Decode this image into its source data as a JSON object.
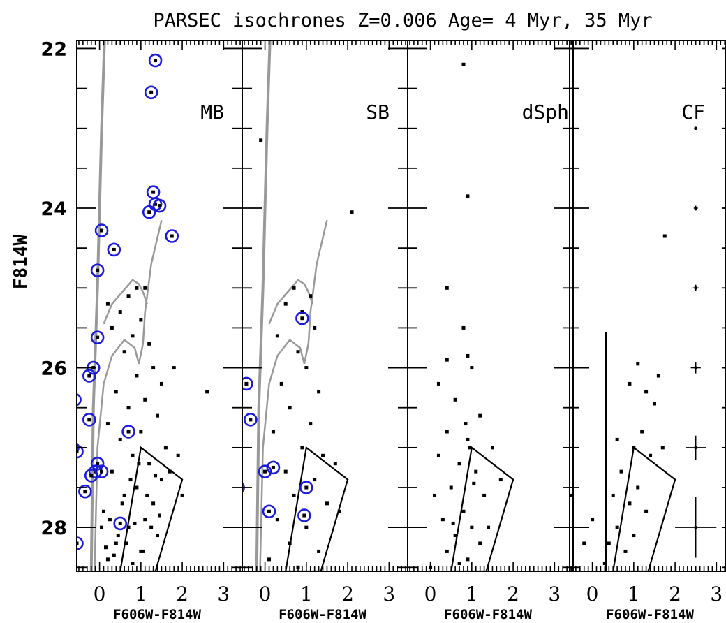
{
  "chart_data": {
    "type": "scatter",
    "title": "PARSEC isochrones Z=0.006   Age= 4 Myr, 35 Myr",
    "ylabel": "F814W",
    "xlabel": "F606W-F814W",
    "xlim": [
      -0.55,
      3.45
    ],
    "ylim": [
      28.55,
      21.9
    ],
    "y_inverted": true,
    "yticks": [
      22,
      24,
      26,
      28
    ],
    "xticks": [
      0,
      1,
      2,
      3
    ],
    "isochrones": [
      {
        "age": "4 Myr",
        "x": [
          -0.2,
          -0.15,
          -0.05,
          0.05,
          0.12
        ],
        "y": [
          28.55,
          26.5,
          25.0,
          23.0,
          21.9
        ]
      },
      {
        "age": "35 Myr",
        "x": [
          -0.12,
          -0.05,
          0.1,
          0.3,
          0.6,
          0.85,
          0.95,
          1.05,
          1.1,
          1.25,
          1.5
        ],
        "y": [
          28.55,
          27.0,
          26.2,
          25.85,
          25.65,
          25.75,
          25.95,
          25.7,
          25.3,
          24.7,
          24.15
        ]
      },
      {
        "age": "35 Myr",
        "x": [
          0.1,
          0.3,
          0.55,
          0.8,
          0.95,
          1.05,
          1.15
        ],
        "y": [
          25.45,
          25.2,
          25.05,
          24.9,
          24.95,
          25.05,
          25.2
        ]
      }
    ],
    "completeness_box": {
      "x": [
        0.5,
        1.0,
        2.0,
        1.35,
        0.5
      ],
      "y": [
        28.55,
        27.0,
        27.4,
        28.55,
        28.55
      ]
    },
    "panels": [
      {
        "label": "MB",
        "show_isochrones": true,
        "stars": [
          [
            0.9,
            25.0
          ],
          [
            1.1,
            25.0
          ],
          [
            0.7,
            25.1
          ],
          [
            0.2,
            25.2
          ],
          [
            0.5,
            25.3
          ],
          [
            1.0,
            25.4
          ],
          [
            0.3,
            25.5
          ],
          [
            0.8,
            25.6
          ],
          [
            1.2,
            25.7
          ],
          [
            0.6,
            25.8
          ],
          [
            1.3,
            26.0
          ],
          [
            0.9,
            26.1
          ],
          [
            1.5,
            26.2
          ],
          [
            0.4,
            26.3
          ],
          [
            1.1,
            26.4
          ],
          [
            0.7,
            26.5
          ],
          [
            1.4,
            26.6
          ],
          [
            0.2,
            26.7
          ],
          [
            1.0,
            26.8
          ],
          [
            0.5,
            26.9
          ],
          [
            1.6,
            27.0
          ],
          [
            0.8,
            27.1
          ],
          [
            1.2,
            27.2
          ],
          [
            0.3,
            27.3
          ],
          [
            1.5,
            27.4
          ],
          [
            0.9,
            27.5
          ],
          [
            0.6,
            27.6
          ],
          [
            1.3,
            27.7
          ],
          [
            0.1,
            27.8
          ],
          [
            1.1,
            27.9
          ],
          [
            0.7,
            28.0
          ],
          [
            1.4,
            28.1
          ],
          [
            0.4,
            28.2
          ],
          [
            1.0,
            28.3
          ],
          [
            0.2,
            28.4
          ],
          [
            0.8,
            28.45
          ],
          [
            1.7,
            27.3
          ],
          [
            1.9,
            27.1
          ],
          [
            2.0,
            27.6
          ],
          [
            2.6,
            26.3
          ],
          [
            1.8,
            26.0
          ],
          [
            0.05,
            28.0
          ],
          [
            0.25,
            27.9
          ],
          [
            0.45,
            28.1
          ],
          [
            0.65,
            28.2
          ],
          [
            0.85,
            27.95
          ],
          [
            1.05,
            28.3
          ],
          [
            1.25,
            28.0
          ],
          [
            1.45,
            27.85
          ],
          [
            0.35,
            28.35
          ],
          [
            0.15,
            28.25
          ],
          [
            0.55,
            27.7
          ],
          [
            0.75,
            27.4
          ],
          [
            0.95,
            27.2
          ],
          [
            1.15,
            27.6
          ],
          [
            1.35,
            27.35
          ]
        ],
        "circled": [
          [
            1.35,
            22.15
          ],
          [
            1.25,
            22.55
          ],
          [
            1.3,
            23.8
          ],
          [
            1.35,
            23.95
          ],
          [
            1.45,
            23.97
          ],
          [
            1.2,
            24.05
          ],
          [
            1.75,
            24.35
          ],
          [
            0.05,
            24.28
          ],
          [
            0.35,
            24.52
          ],
          [
            -0.05,
            24.78
          ],
          [
            -0.05,
            25.62
          ],
          [
            -0.15,
            26.0
          ],
          [
            -0.25,
            26.1
          ],
          [
            -0.6,
            26.4
          ],
          [
            -0.25,
            26.65
          ],
          [
            -0.65,
            27.0
          ],
          [
            -0.55,
            27.05
          ],
          [
            0.7,
            26.8
          ],
          [
            -0.05,
            27.2
          ],
          [
            -0.1,
            27.3
          ],
          [
            0.05,
            27.3
          ],
          [
            -0.2,
            27.35
          ],
          [
            -0.35,
            27.55
          ],
          [
            0.5,
            27.95
          ],
          [
            -0.55,
            28.2
          ]
        ]
      },
      {
        "label": "SB",
        "show_isochrones": true,
        "stars": [
          [
            0.7,
            25.0
          ],
          [
            1.1,
            25.1
          ],
          [
            0.5,
            25.2
          ],
          [
            0.9,
            25.3
          ],
          [
            1.2,
            25.5
          ],
          [
            0.3,
            25.6
          ],
          [
            0.8,
            25.8
          ],
          [
            1.0,
            26.0
          ],
          [
            0.4,
            26.2
          ],
          [
            1.3,
            26.3
          ],
          [
            0.6,
            26.5
          ],
          [
            1.1,
            26.7
          ],
          [
            0.2,
            26.8
          ],
          [
            0.9,
            27.0
          ],
          [
            1.4,
            27.1
          ],
          [
            0.5,
            27.3
          ],
          [
            1.2,
            27.4
          ],
          [
            0.7,
            27.6
          ],
          [
            1.5,
            27.7
          ],
          [
            0.3,
            27.9
          ],
          [
            1.0,
            28.0
          ],
          [
            0.6,
            28.2
          ],
          [
            1.3,
            28.3
          ],
          [
            0.1,
            28.4
          ],
          [
            0.8,
            28.5
          ],
          [
            2.1,
            24.05
          ],
          [
            -0.1,
            23.15
          ],
          [
            1.7,
            27.2
          ],
          [
            1.8,
            27.8
          ]
        ],
        "circled": [
          [
            0.9,
            25.38
          ],
          [
            -0.45,
            26.2
          ],
          [
            -0.35,
            26.65
          ],
          [
            0.0,
            27.3
          ],
          [
            0.2,
            27.25
          ],
          [
            -0.65,
            27.5
          ],
          [
            1.0,
            27.5
          ],
          [
            0.1,
            27.8
          ],
          [
            0.95,
            27.85
          ]
        ]
      },
      {
        "label": "dSph",
        "show_isochrones": false,
        "stars": [
          [
            0.8,
            22.2
          ],
          [
            0.9,
            23.85
          ],
          [
            0.4,
            25.0
          ],
          [
            0.8,
            25.5
          ],
          [
            0.4,
            25.9
          ],
          [
            0.9,
            25.85
          ],
          [
            1.0,
            26.0
          ],
          [
            0.2,
            26.2
          ],
          [
            0.6,
            26.4
          ],
          [
            1.2,
            26.6
          ],
          [
            0.4,
            26.8
          ],
          [
            0.9,
            26.9
          ],
          [
            1.5,
            27.0
          ],
          [
            0.2,
            27.1
          ],
          [
            0.7,
            27.2
          ],
          [
            1.1,
            27.3
          ],
          [
            0.5,
            27.5
          ],
          [
            1.3,
            27.6
          ],
          [
            0.8,
            27.8
          ],
          [
            0.3,
            27.9
          ],
          [
            1.0,
            28.0
          ],
          [
            0.6,
            28.1
          ],
          [
            1.2,
            28.2
          ],
          [
            0.4,
            28.3
          ],
          [
            0.9,
            28.4
          ],
          [
            0.0,
            28.5
          ],
          [
            1.7,
            27.4
          ],
          [
            0.1,
            27.6
          ],
          [
            1.4,
            28.0
          ],
          [
            0.7,
            28.45
          ],
          [
            0.95,
            27.0
          ],
          [
            1.05,
            27.45
          ],
          [
            0.85,
            26.7
          ],
          [
            0.55,
            27.95
          ]
        ]
      },
      {
        "label": "CF",
        "show_isochrones": false,
        "stars": [
          [
            1.75,
            24.35
          ],
          [
            1.1,
            25.95
          ],
          [
            1.3,
            26.3
          ],
          [
            1.5,
            26.45
          ],
          [
            0.9,
            26.2
          ],
          [
            1.2,
            26.8
          ],
          [
            0.6,
            26.9
          ],
          [
            1.0,
            27.0
          ],
          [
            1.4,
            27.1
          ],
          [
            0.7,
            27.3
          ],
          [
            1.1,
            27.5
          ],
          [
            0.5,
            27.6
          ],
          [
            0.9,
            27.7
          ],
          [
            1.3,
            27.8
          ],
          [
            0.6,
            28.0
          ],
          [
            1.0,
            28.1
          ],
          [
            0.4,
            28.2
          ],
          [
            0.8,
            28.3
          ],
          [
            0.3,
            28.45
          ],
          [
            -0.5,
            27.6
          ],
          [
            -0.2,
            28.2
          ],
          [
            0.0,
            27.9
          ],
          [
            1.7,
            27.0
          ],
          [
            1.6,
            26.1
          ]
        ],
        "detection_limit": {
          "x": [
            0.33,
            0.33
          ],
          "y": [
            25.55,
            28.55
          ]
        },
        "error_bars": [
          {
            "x": 2.5,
            "y": 23.0,
            "xerr": 0.04,
            "yerr": 0.02
          },
          {
            "x": 2.5,
            "y": 24.0,
            "xerr": 0.05,
            "yerr": 0.03
          },
          {
            "x": 2.5,
            "y": 25.0,
            "xerr": 0.07,
            "yerr": 0.04
          },
          {
            "x": 2.5,
            "y": 26.0,
            "xerr": 0.12,
            "yerr": 0.07
          },
          {
            "x": 2.5,
            "y": 27.0,
            "xerr": 0.25,
            "yerr": 0.15
          },
          {
            "x": 2.5,
            "y": 28.0,
            "xerr": 0.5,
            "yerr": 0.38
          }
        ]
      }
    ]
  }
}
